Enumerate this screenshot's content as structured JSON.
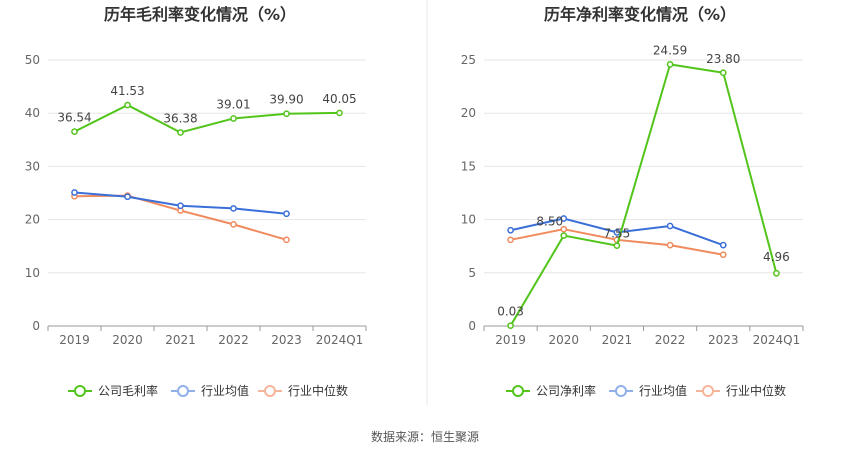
{
  "source": "数据来源：恒生聚源",
  "colors": {
    "company": "#52c41a",
    "industry_avg": "#3a6fd8",
    "industry_median": "#f08a5d",
    "legend_avg": "#8fb0ea",
    "legend_median": "#f5b59a",
    "grid": "#e6e6e6",
    "axis": "#999999",
    "text": "#666666",
    "title": "#333333",
    "divider": "#e8e8e8"
  },
  "chart_data": [
    {
      "type": "line",
      "title": "历年毛利率变化情况（%）",
      "categories": [
        "2019",
        "2020",
        "2021",
        "2022",
        "2023",
        "2024Q1"
      ],
      "ylim": [
        0,
        50
      ],
      "yticks": [
        0,
        10,
        20,
        30,
        40,
        50
      ],
      "series": [
        {
          "name": "公司毛利率",
          "key": "company",
          "values": [
            36.54,
            41.53,
            36.38,
            39.01,
            39.9,
            40.05
          ],
          "labels": [
            "36.54",
            "41.53",
            "36.38",
            "39.01",
            "39.90",
            "40.05"
          ]
        },
        {
          "name": "行业均值",
          "key": "industry_avg",
          "values": [
            25.1,
            24.3,
            22.6,
            22.1,
            21.1,
            null
          ]
        },
        {
          "name": "行业中位数",
          "key": "industry_median",
          "values": [
            24.4,
            24.5,
            21.7,
            19.1,
            16.2,
            null
          ]
        }
      ]
    },
    {
      "type": "line",
      "title": "历年净利率变化情况（%）",
      "categories": [
        "2019",
        "2020",
        "2021",
        "2022",
        "2023",
        "2024Q1"
      ],
      "ylim": [
        0,
        25
      ],
      "yticks": [
        0,
        5,
        10,
        15,
        20,
        25
      ],
      "series": [
        {
          "name": "公司净利率",
          "key": "company",
          "values": [
            0.03,
            8.5,
            7.55,
            24.59,
            23.8,
            4.96
          ],
          "labels": [
            "0.03",
            "8.50",
            "7.55",
            "24.59",
            "23.80",
            "4.96"
          ]
        },
        {
          "name": "行业均值",
          "key": "industry_avg",
          "values": [
            9.0,
            10.1,
            8.8,
            9.4,
            7.6,
            null
          ]
        },
        {
          "name": "行业中位数",
          "key": "industry_median",
          "values": [
            8.1,
            9.1,
            8.1,
            7.6,
            6.7,
            null
          ]
        }
      ]
    }
  ]
}
